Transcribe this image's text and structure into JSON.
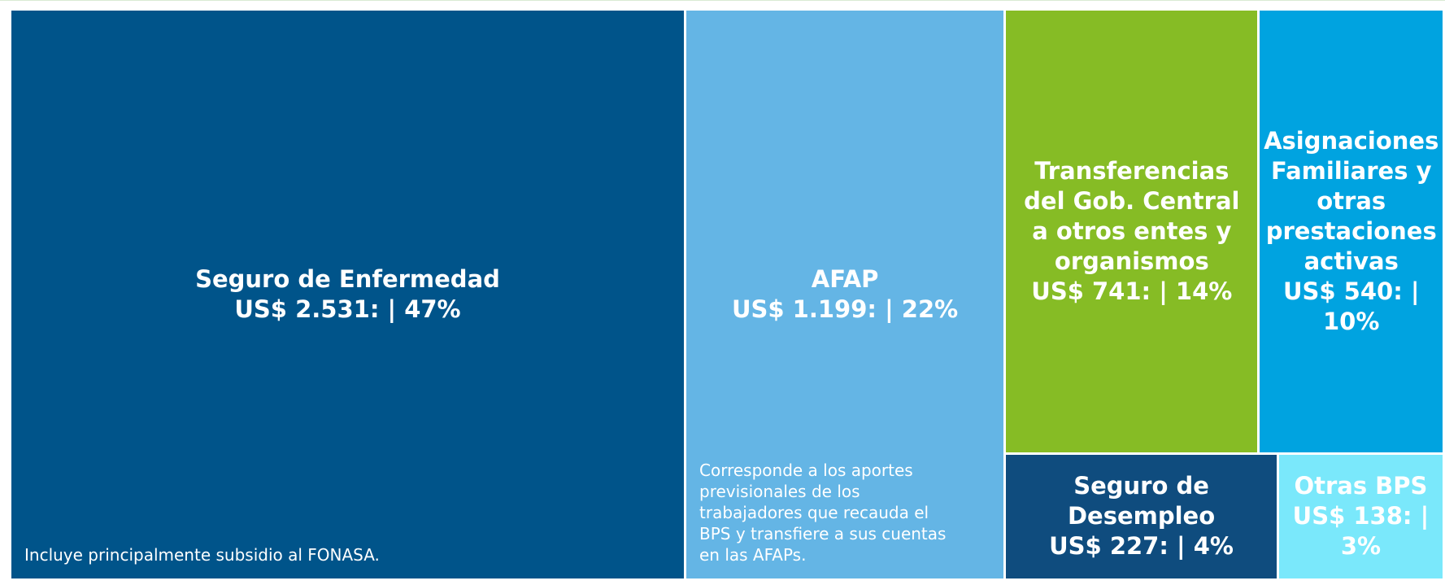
{
  "chart_data": {
    "type": "treemap",
    "categories": [
      "Seguro de Enfermedad",
      "AFAP",
      "Transferencias del Gob. Central a otros entes y organismos",
      "Asignaciones Familiares y otras prestaciones activas",
      "Seguro de Desempleo",
      "Otras BPS"
    ],
    "values": [
      2531,
      1199,
      741,
      540,
      227,
      138
    ],
    "value_labels": [
      "US$ 2.531: | 47%",
      "US$ 1.199: | 22%",
      "US$ 741: | 14%",
      "US$ 540: | 10%",
      "US$ 227: | 4%",
      "US$ 138: | 3%"
    ],
    "colors": [
      "#00548a",
      "#64b5e5",
      "#86bc25",
      "#00a3e0",
      "#0f4c7e",
      "#7ae8fb"
    ],
    "annotations": [
      "Incluye principalmente subsidio al FONASA.",
      "Corresponde a los aportes previsionales de los trabajadores que recauda el BPS y transfiere a sus cuentas en las AFAPs."
    ]
  }
}
